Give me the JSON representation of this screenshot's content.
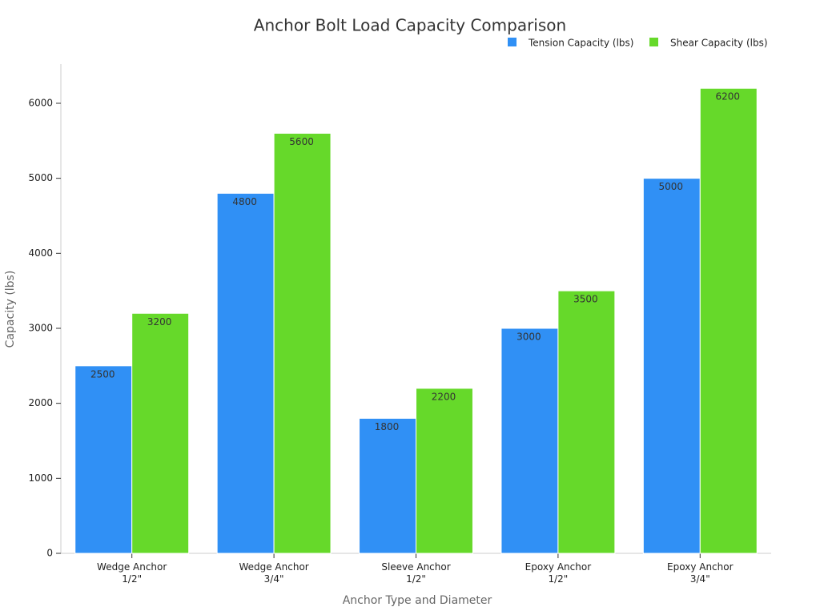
{
  "chart_data": {
    "type": "bar",
    "title": "Anchor Bolt Load Capacity Comparison",
    "x_label": "Anchor Type and Diameter",
    "y_label": "Capacity (lbs)",
    "categories": [
      "Wedge Anchor\n1/2\"",
      "Wedge Anchor\n3/4\"",
      "Sleeve Anchor\n1/2\"",
      "Epoxy Anchor\n1/2\"",
      "Epoxy Anchor\n3/4\""
    ],
    "series": [
      {
        "name": "Tension Capacity (lbs)",
        "color": "#3090f5",
        "values": [
          2500,
          4800,
          1800,
          3000,
          5000
        ]
      },
      {
        "name": "Shear Capacity (lbs)",
        "color": "#66d92a",
        "values": [
          3200,
          5600,
          2200,
          3500,
          6200
        ]
      }
    ],
    "ylim": [
      0,
      6500
    ],
    "yticks": [
      0,
      1000,
      2000,
      3000,
      4000,
      5000,
      6000
    ],
    "grid": false,
    "legend": "top-right"
  }
}
